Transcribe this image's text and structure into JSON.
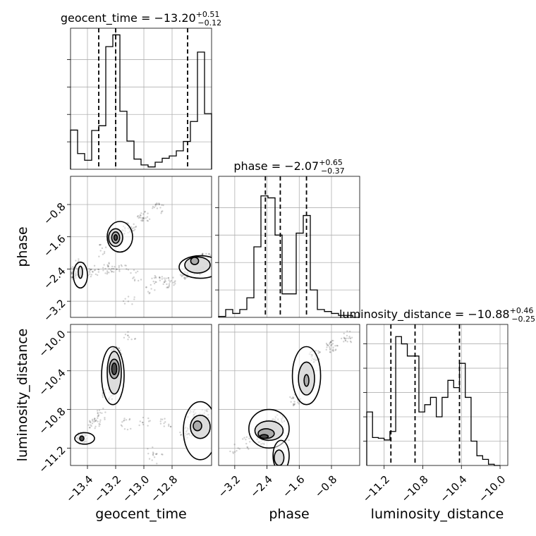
{
  "chart_data": {
    "type": "corner",
    "params": [
      {
        "name": "geocent_time",
        "title": {
          "prefix": "geocent_time = −13.20",
          "plus": "+0.51",
          "minus": "−0.12"
        },
        "range": [
          -13.52,
          -12.52
        ],
        "ticks": [
          {
            "v": -13.4,
            "label": "−13.4"
          },
          {
            "v": -13.2,
            "label": "−13.2"
          },
          {
            "v": -13.0,
            "label": "−13.0"
          },
          {
            "v": -12.8,
            "label": "−12.8"
          }
        ],
        "quantiles": [
          -13.32,
          -13.2,
          -12.69
        ],
        "hist": {
          "edges": [
            -13.52,
            -13.47,
            -13.42,
            -13.37,
            -13.32,
            -13.27,
            -13.22,
            -13.17,
            -13.12,
            -13.07,
            -13.02,
            -12.97,
            -12.92,
            -12.87,
            -12.82,
            -12.77,
            -12.72,
            -12.67,
            -12.62,
            -12.57,
            -12.52
          ],
          "counts": [
            1,
            0.4,
            0.23,
            0.99,
            1.11,
            3.13,
            3.43,
            1.48,
            0.72,
            0.26,
            0.11,
            0.06,
            0.18,
            0.28,
            0.34,
            0.47,
            0.71,
            1.22,
            2.99,
            1.42
          ],
          "ymax": 3.6,
          "yticks": [
            0.7,
            1.4,
            2.1,
            2.8
          ]
        }
      },
      {
        "name": "phase",
        "title": {
          "prefix": "phase = −2.07",
          "plus": "+0.65",
          "minus": "−0.37"
        },
        "range": [
          -3.6,
          -0.1
        ],
        "ticks": [
          {
            "v": -3.2,
            "label": "−3.2"
          },
          {
            "v": -2.4,
            "label": "−2.4"
          },
          {
            "v": -1.6,
            "label": "−1.6"
          },
          {
            "v": -0.8,
            "label": "−0.8"
          }
        ],
        "quantiles": [
          -2.44,
          -2.07,
          -1.42
        ],
        "hist": {
          "edges": [
            -3.6,
            -3.425,
            -3.25,
            -3.075,
            -2.9,
            -2.725,
            -2.55,
            -2.375,
            -2.2,
            -2.025,
            -1.85,
            -1.675,
            -1.5,
            -1.325,
            -1.15,
            -0.975,
            -0.8,
            -0.625,
            -0.45,
            -0.275,
            -0.1
          ],
          "counts": [
            0.05,
            0.4,
            0.2,
            0.4,
            1.0,
            3.6,
            6.2,
            6.1,
            4.2,
            1.2,
            1.2,
            4.3,
            5.2,
            1.4,
            0.4,
            0.3,
            0.2,
            0.1,
            0.1,
            0.0
          ],
          "ymax": 7.2,
          "yticks": [
            1.4,
            2.8,
            4.2,
            5.6
          ]
        }
      },
      {
        "name": "luminosity_distance",
        "title": {
          "prefix": "luminosity_distance = −10.88",
          "plus": "+0.46",
          "minus": "−0.25"
        },
        "range": [
          -11.38,
          -9.92
        ],
        "ticks": [
          {
            "v": -11.2,
            "label": "−11.2"
          },
          {
            "v": -10.8,
            "label": "−10.8"
          },
          {
            "v": -10.4,
            "label": "−10.4"
          },
          {
            "v": -10.0,
            "label": "−10.0"
          }
        ],
        "quantiles": [
          -11.13,
          -10.88,
          -10.42
        ],
        "hist": {
          "edges": [
            -11.38,
            -11.32,
            -11.26,
            -11.2,
            -11.14,
            -11.08,
            -11.02,
            -10.96,
            -10.9,
            -10.84,
            -10.78,
            -10.72,
            -10.66,
            -10.6,
            -10.54,
            -10.48,
            -10.42,
            -10.36,
            -10.3,
            -10.24,
            -10.18,
            -10.12,
            -10.06,
            -10.0
          ],
          "counts": [
            2.2,
            1.15,
            1.12,
            1.05,
            1.4,
            5.3,
            5.0,
            4.5,
            4.5,
            2.2,
            2.5,
            2.8,
            2.0,
            2.8,
            3.5,
            3.2,
            4.2,
            2.8,
            1.0,
            0.4,
            0.25,
            0.05,
            0.0
          ],
          "ymax": 5.8,
          "yticks": [
            1.0,
            2.0,
            3.0,
            4.0,
            5.0
          ]
        }
      }
    ],
    "pairs": [
      {
        "x": "geocent_time",
        "y": "phase",
        "points": [
          [
            -13.5,
            -2.5,
            60
          ],
          [
            -13.36,
            -2.47,
            20
          ],
          [
            -13.25,
            -2.4,
            25
          ],
          [
            -13.15,
            -2.38,
            12
          ],
          [
            -13.45,
            -2.3,
            15
          ],
          [
            -13.3,
            -1.95,
            10
          ],
          [
            -13.22,
            -1.65,
            60
          ],
          [
            -13.18,
            -1.55,
            30
          ],
          [
            -13.1,
            -1.35,
            25
          ],
          [
            -13.0,
            -1.1,
            25
          ],
          [
            -12.9,
            -0.9,
            18
          ],
          [
            -13.05,
            -2.55,
            10
          ],
          [
            -12.9,
            -2.65,
            15
          ],
          [
            -12.82,
            -2.72,
            25
          ],
          [
            -12.7,
            -2.5,
            25
          ],
          [
            -12.62,
            -2.4,
            35
          ],
          [
            -12.56,
            -2.15,
            40
          ],
          [
            -13.1,
            -3.2,
            8
          ],
          [
            -12.95,
            -2.9,
            8
          ]
        ],
        "contours": [
          {
            "level": 1,
            "rings": [
              [
                -13.2,
                -1.62,
                0.012,
                0.07
              ]
            ]
          },
          {
            "level": 2,
            "rings": [
              [
                -13.2,
                -1.62,
                0.028,
                0.14
              ],
              [
                -12.64,
                -2.2,
                0.028,
                0.09
              ]
            ]
          },
          {
            "level": 3,
            "rings": [
              [
                -13.2,
                -1.62,
                0.05,
                0.22
              ],
              [
                -12.62,
                -2.3,
                0.09,
                0.2
              ],
              [
                -13.45,
                -2.48,
                0.015,
                0.15
              ]
            ]
          },
          {
            "level": 4,
            "rings": [
              [
                -13.17,
                -1.6,
                0.09,
                0.38
              ],
              [
                -12.6,
                -2.35,
                0.15,
                0.28
              ],
              [
                -13.45,
                -2.55,
                0.05,
                0.32
              ]
            ]
          }
        ]
      },
      {
        "x": "geocent_time",
        "y": "luminosity_distance",
        "points": [
          [
            -13.44,
            -11.1,
            50
          ],
          [
            -13.35,
            -10.95,
            25
          ],
          [
            -13.3,
            -10.85,
            15
          ],
          [
            -13.25,
            -10.65,
            25
          ],
          [
            -13.22,
            -10.38,
            35
          ],
          [
            -13.2,
            -10.22,
            40
          ],
          [
            -13.12,
            -10.95,
            12
          ],
          [
            -13.0,
            -10.92,
            10
          ],
          [
            -12.85,
            -10.95,
            12
          ],
          [
            -12.7,
            -11.05,
            25
          ],
          [
            -12.65,
            -10.85,
            20
          ],
          [
            -12.56,
            -10.85,
            25
          ],
          [
            -12.95,
            -11.25,
            8
          ],
          [
            -12.9,
            -11.3,
            8
          ],
          [
            -13.1,
            -10.05,
            10
          ]
        ],
        "contours": [
          {
            "level": 1,
            "rings": [
              [
                -13.44,
                -11.1,
                0.015,
                0.025
              ],
              [
                -13.21,
                -10.38,
                0.018,
                0.06
              ]
            ]
          },
          {
            "level": 2,
            "rings": [
              [
                -13.21,
                -10.38,
                0.035,
                0.1
              ],
              [
                -12.62,
                -10.97,
                0.03,
                0.05
              ]
            ]
          },
          {
            "level": 3,
            "rings": [
              [
                -13.21,
                -10.42,
                0.05,
                0.22
              ],
              [
                -12.6,
                -10.98,
                0.07,
                0.12
              ]
            ]
          },
          {
            "level": 4,
            "rings": [
              [
                -13.22,
                -10.45,
                0.08,
                0.3
              ],
              [
                -13.42,
                -11.1,
                0.07,
                0.06
              ],
              [
                -12.6,
                -11.02,
                0.12,
                0.3
              ]
            ]
          }
        ]
      },
      {
        "x": "phase",
        "y": "luminosity_distance",
        "points": [
          [
            -2.5,
            -11.1,
            40
          ],
          [
            -2.3,
            -10.95,
            25
          ],
          [
            -2.1,
            -10.9,
            20
          ],
          [
            -1.7,
            -10.7,
            20
          ],
          [
            -1.42,
            -10.45,
            30
          ],
          [
            -1.2,
            -10.25,
            30
          ],
          [
            -0.8,
            -10.15,
            30
          ],
          [
            -0.4,
            -10.05,
            20
          ],
          [
            -2.9,
            -11.15,
            10
          ],
          [
            -3.2,
            -11.2,
            8
          ],
          [
            -2.0,
            -11.1,
            8
          ]
        ],
        "contours": [
          {
            "level": 1,
            "rings": [
              [
                -2.47,
                -11.08,
                0.1,
                0.02
              ]
            ]
          },
          {
            "level": 2,
            "rings": [
              [
                -2.42,
                -11.05,
                0.2,
                0.05
              ],
              [
                -1.42,
                -10.5,
                0.06,
                0.06
              ]
            ]
          },
          {
            "level": 3,
            "rings": [
              [
                -1.42,
                -10.48,
                0.2,
                0.17
              ],
              [
                -2.35,
                -11.02,
                0.35,
                0.1
              ],
              [
                -2.1,
                -11.3,
                0.12,
                0.08
              ]
            ]
          },
          {
            "level": 4,
            "rings": [
              [
                -1.42,
                -10.45,
                0.35,
                0.3
              ],
              [
                -2.35,
                -11.0,
                0.5,
                0.2
              ],
              [
                -2.05,
                -11.28,
                0.2,
                0.16
              ]
            ]
          }
        ]
      }
    ]
  }
}
